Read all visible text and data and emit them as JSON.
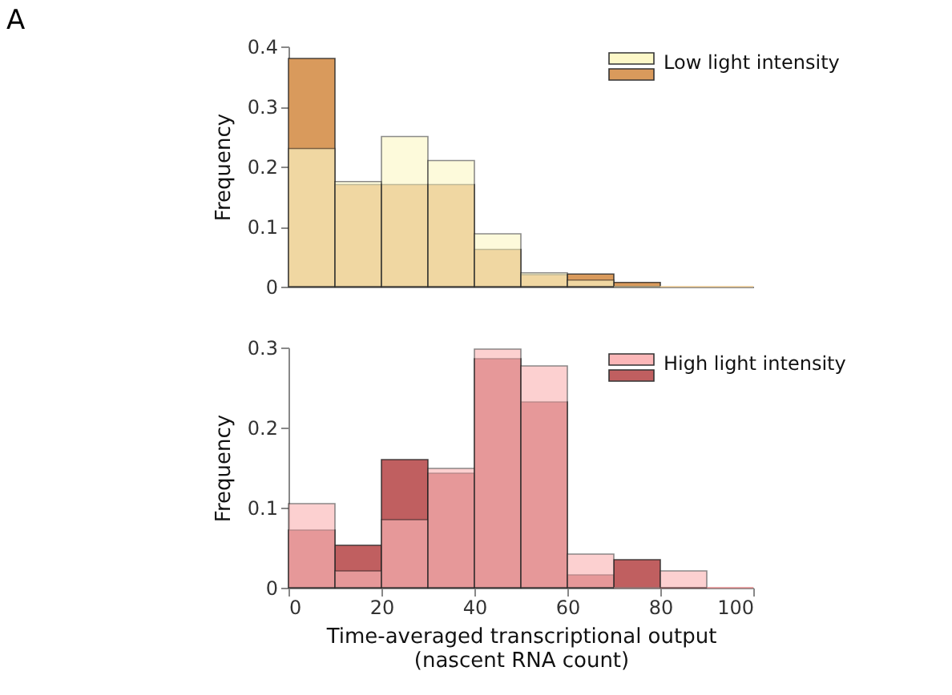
{
  "chart_data": [
    {
      "type": "histogram",
      "annotations": [
        "A"
      ],
      "ylabel": "Frequency",
      "bins": [
        0,
        10,
        20,
        30,
        40,
        50,
        60,
        70,
        80,
        90,
        100
      ],
      "xlim": [
        0,
        100
      ],
      "xticks": [
        0,
        20,
        40,
        60,
        80,
        100
      ],
      "ylim": [
        0,
        0.4
      ],
      "yticks": [
        0,
        0.1,
        0.2,
        0.3,
        0.4
      ],
      "tick_labels": "y",
      "grid": false,
      "legend": "top right",
      "series": [
        {
          "name": "Low light intensity",
          "color": "#fdf8c8",
          "values": [
            0.23,
            0.175,
            0.25,
            0.21,
            0.088,
            0.023,
            0.011,
            0,
            0,
            0
          ]
        },
        {
          "color": "#d99a5c",
          "values": [
            0.38,
            0.17,
            0.17,
            0.17,
            0.062,
            0.02,
            0.021,
            0.007,
            0,
            0
          ]
        }
      ]
    },
    {
      "type": "histogram",
      "ylabel": "Frequency",
      "xlabel": "Time-averaged transcriptional output\n(nascent RNA count)",
      "bins": [
        0,
        10,
        20,
        30,
        40,
        50,
        60,
        70,
        80,
        90,
        100
      ],
      "xlim": [
        0,
        100
      ],
      "xticks": [
        0,
        20,
        40,
        60,
        80,
        100
      ],
      "ylim": [
        0,
        0.3
      ],
      "yticks": [
        0,
        0.1,
        0.2,
        0.3
      ],
      "grid": false,
      "legend": "top right",
      "series": [
        {
          "name": "High light intensity",
          "color": "#fbb7b8",
          "values": [
            0.105,
            0.021,
            0.085,
            0.149,
            0.298,
            0.277,
            0.042,
            0,
            0.021,
            0
          ]
        },
        {
          "color": "#c05f60",
          "values": [
            0.072,
            0.053,
            0.16,
            0.143,
            0.286,
            0.232,
            0.016,
            0.035,
            0,
            0
          ]
        }
      ]
    }
  ]
}
